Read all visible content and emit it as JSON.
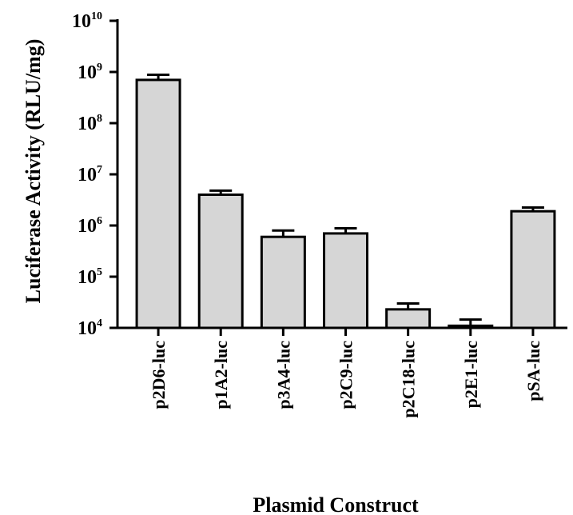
{
  "chart_data": {
    "type": "bar",
    "title": "",
    "xlabel": "Plasmid Construct",
    "ylabel": "Luciferase Activity (RLU/mg)",
    "yscale": "log",
    "ylim": [
      10000,
      10000000000
    ],
    "ytick_base": "10",
    "yticks": [
      {
        "value": 10000,
        "exp": "4"
      },
      {
        "value": 100000,
        "exp": "5"
      },
      {
        "value": 1000000,
        "exp": "6"
      },
      {
        "value": 10000000,
        "exp": "7"
      },
      {
        "value": 100000000,
        "exp": "8"
      },
      {
        "value": 1000000000,
        "exp": "9"
      },
      {
        "value": 10000000000,
        "exp": "10"
      }
    ],
    "categories": [
      "p2D6-luc",
      "p1A2-luc",
      "p3A4-luc",
      "p2C9-luc",
      "p2C18-luc",
      "p2E1-luc",
      "pSA-luc"
    ],
    "values": [
      700000000,
      4000000,
      600000,
      700000,
      23000,
      11000,
      1900000
    ],
    "error_upper": [
      880000000,
      4800000,
      800000,
      880000,
      30000,
      14500,
      2250000
    ],
    "grid": false,
    "colors": {
      "bar_fill": "#d6d6d6",
      "bar_stroke": "#000000",
      "axis": "#000000"
    }
  }
}
